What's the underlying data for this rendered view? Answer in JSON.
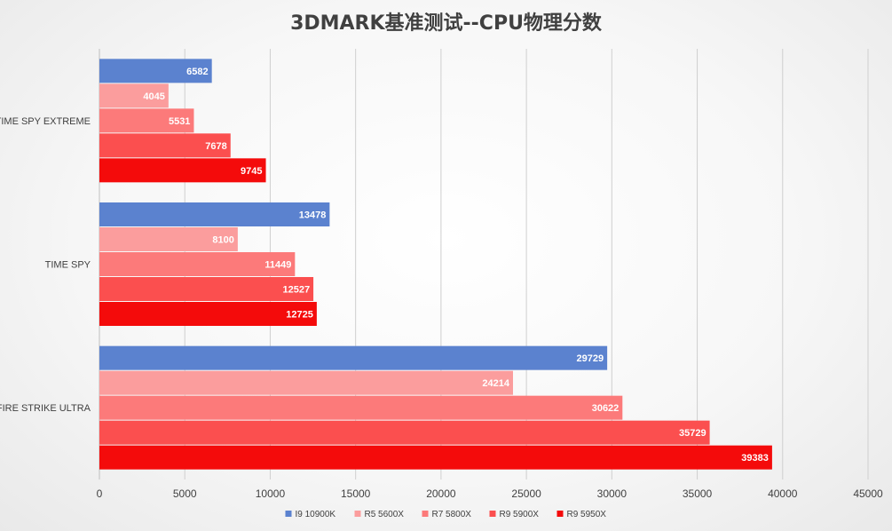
{
  "chart_data": {
    "type": "bar",
    "orientation": "horizontal",
    "title": "3DMARK基准测试--CPU物理分数",
    "xlabel": "",
    "ylabel": "",
    "xlim": [
      0,
      45000
    ],
    "x_ticks": [
      "0",
      "5000",
      "10000",
      "15000",
      "20000",
      "25000",
      "30000",
      "35000",
      "40000",
      "45000"
    ],
    "categories": [
      "TIME SPY EXTREME",
      "TIME SPY",
      "FIRE STRIKE ULTRA"
    ],
    "series": [
      {
        "name": "I9 10900K",
        "color": "#5b82cf",
        "values": [
          6582,
          13478,
          29729
        ]
      },
      {
        "name": "R5 5600X",
        "color": "#fb9d9d",
        "values": [
          4045,
          8100,
          24214
        ]
      },
      {
        "name": "R7 5800X",
        "color": "#fc7a7a",
        "values": [
          5531,
          11449,
          30622
        ]
      },
      {
        "name": "R9 5900X",
        "color": "#fb4f4f",
        "values": [
          7678,
          12527,
          35729
        ]
      },
      {
        "name": "R9 5950X",
        "color": "#f40b0b",
        "values": [
          9745,
          12725,
          39383
        ]
      }
    ],
    "grid": true,
    "legend_position": "bottom"
  }
}
